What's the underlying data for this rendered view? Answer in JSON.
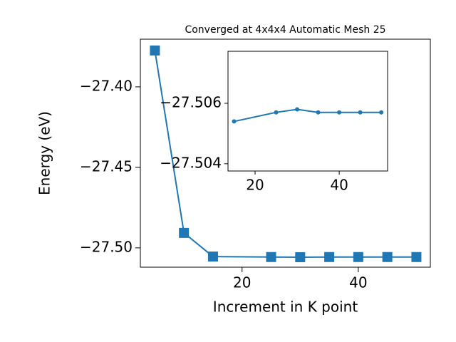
{
  "chart_data": [
    {
      "type": "line",
      "title": "Converged at 4x4x4 Automatic Mesh 25",
      "x_label": "Increment in K point",
      "y_label": "Energy (eV)",
      "x": [
        5,
        10,
        15,
        25,
        30,
        35,
        40,
        45,
        50
      ],
      "series": [
        {
          "color": "#1f77b4",
          "marker": "square",
          "values": [
            -27.3774,
            -27.4907,
            -27.5054,
            -27.5057,
            -27.5058,
            -27.5057,
            -27.5057,
            -27.5057,
            -27.5057
          ]
        }
      ],
      "xlim": [
        2.5,
        52.4
      ],
      "ylim": [
        -27.512,
        -27.3704
      ],
      "xticks": [
        20,
        40
      ],
      "yticks": [
        {
          "value": -27.4,
          "label": "−27.40"
        },
        {
          "value": -27.45,
          "label": "−27.45"
        },
        {
          "value": -27.5,
          "label": "−27.50"
        }
      ]
    },
    {
      "type": "line",
      "x": [
        15,
        25,
        30,
        35,
        40,
        45,
        50
      ],
      "series": [
        {
          "color": "#1f77b4",
          "marker": "circle",
          "values": [
            -27.5054,
            -27.5057,
            -27.5058,
            -27.5057,
            -27.5057,
            -27.5057,
            -27.5057
          ]
        }
      ],
      "xlim": [
        13.56,
        51.5
      ],
      "ylim": [
        -27.50376,
        -27.50772
      ],
      "xticks": [
        20,
        40
      ],
      "yticks": [
        {
          "value": -27.506,
          "label": "−27.506"
        },
        {
          "value": -27.504,
          "label": "−27.504"
        }
      ]
    }
  ]
}
